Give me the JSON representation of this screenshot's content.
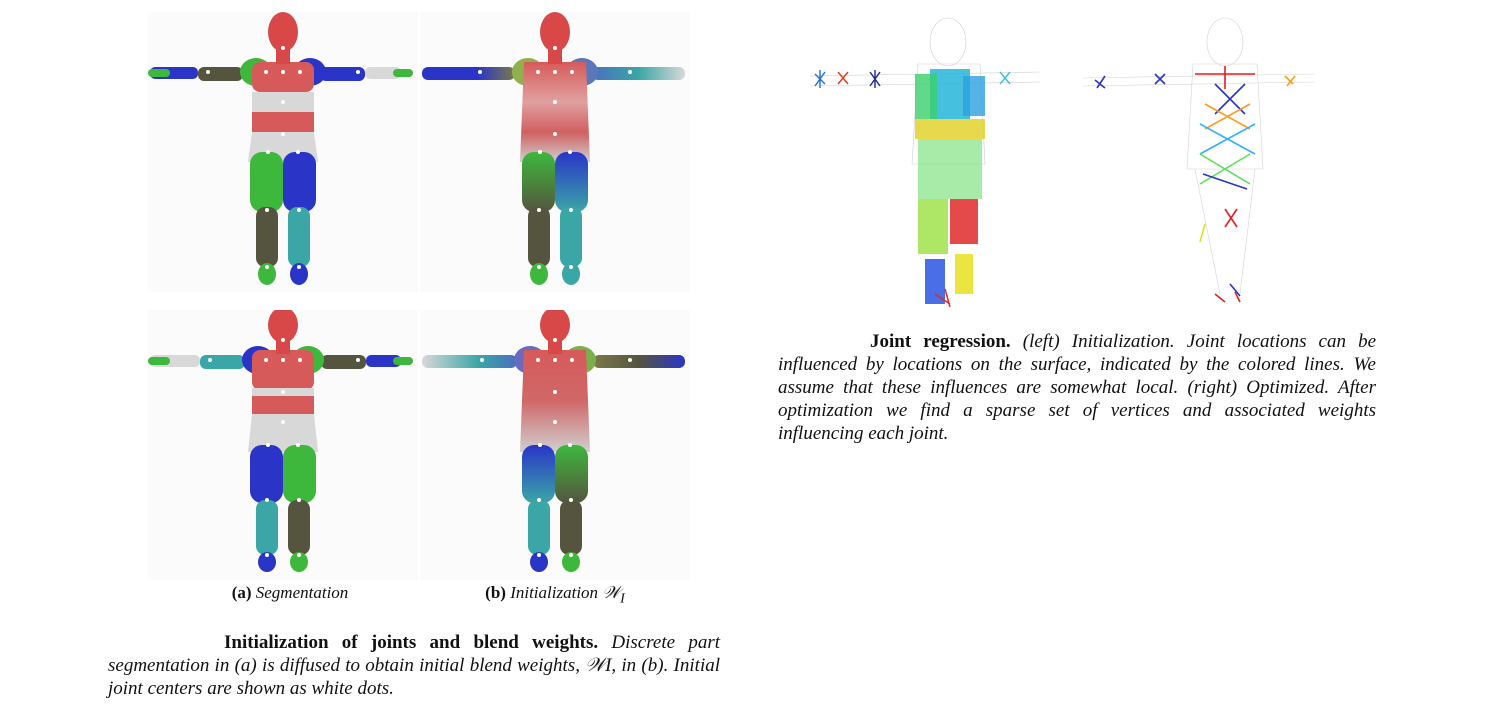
{
  "left_figure": {
    "subcaptions": [
      {
        "label": "(a)",
        "text": "Segmentation"
      },
      {
        "label": "(b)",
        "text": "Initialization 𝒲",
        "sub": "I"
      }
    ],
    "caption_lead": "Initialization of joints and blend weights.",
    "caption_body": "Discrete part segmentation in (a) is diffused to obtain initial blend weights, 𝒲I, in (b). Initial joint centers are shown as white dots."
  },
  "right_figure": {
    "caption_lead": "Joint regression.",
    "caption_body": "(left) Initialization. Joint locations can be influenced by locations on the surface, indicated by the colored lines. We assume that these influences are somewhat local. (right) Optimized. After optimization we find a sparse set of vertices and associated weights influencing each joint."
  },
  "colors": {
    "head": "#d94848",
    "white_part": "#d8d8d8",
    "blue": "#2a35c8",
    "green": "#3db83d",
    "teal": "#3aa6a6",
    "olive": "#55553f",
    "red_band": "#d65a5a"
  }
}
